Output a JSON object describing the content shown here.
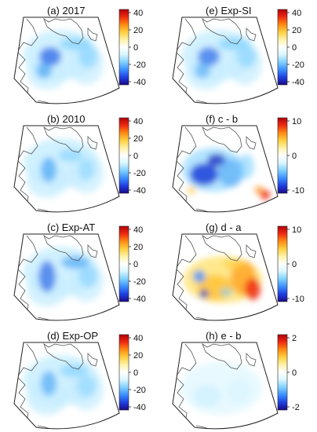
{
  "colormap": [
    "#1b0a86",
    "#1f3fe0",
    "#3b8fff",
    "#7fd0ff",
    "#d9f6ff",
    "#ffffff",
    "#fff2a8",
    "#ffcf40",
    "#ff8a12",
    "#ee2a10",
    "#b0000a"
  ],
  "panels": [
    {
      "title": "(a) 2017",
      "ticks": [
        "40",
        "20",
        "0",
        "-20",
        "-40"
      ],
      "field": "a"
    },
    {
      "title": "(b) 2010",
      "ticks": [
        "40",
        "20",
        "0",
        "-20",
        "-40"
      ],
      "field": "b"
    },
    {
      "title": "(c) Exp-AT",
      "ticks": [
        "40",
        "20",
        "0",
        "-20",
        "-40"
      ],
      "field": "c"
    },
    {
      "title": "(d) Exp-OP",
      "ticks": [
        "40",
        "20",
        "0",
        "-20",
        "-40"
      ],
      "field": "d"
    },
    {
      "title": "(e) Exp-SI",
      "ticks": [
        "40",
        "20",
        "0",
        "-20",
        "-40"
      ],
      "field": "e"
    },
    {
      "title": "(f) c - b",
      "ticks": [
        "10",
        "0",
        "-10"
      ],
      "field": "f"
    },
    {
      "title": "(g) d - a",
      "ticks": [
        "10",
        "0",
        "-10"
      ],
      "field": "g"
    },
    {
      "title": "(h) e - b",
      "ticks": [
        "2",
        "0",
        "-2"
      ],
      "field": "h"
    }
  ]
}
